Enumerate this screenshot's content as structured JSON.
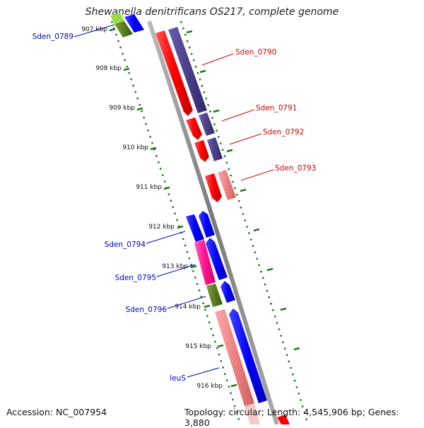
{
  "title": "Shewanella denitrificans OS217, complete genome",
  "footer": {
    "accession": "Accession: NC_007954",
    "stats": "Topology: circular; Length: 4,545,906 bp; Genes: 3,880"
  },
  "ticks": [
    "907 kbp",
    "908 kbp",
    "909 kbp",
    "910 kbp",
    "911 kbp",
    "912 kbp",
    "913 kbp",
    "914 kbp",
    "915 kbp",
    "916 kbp"
  ],
  "genes": {
    "reverse": [
      {
        "name": "Sden_0790",
        "label_color": "#cc0000"
      },
      {
        "name": "Sden_0791",
        "label_color": "#cc0000"
      },
      {
        "name": "Sden_0792",
        "label_color": "#cc0000"
      },
      {
        "name": "Sden_0793",
        "label_color": "#cc0000"
      }
    ],
    "forward": [
      {
        "name": "Sden_0789",
        "label_color": "#0000bb"
      },
      {
        "name": "Sden_0794",
        "label_color": "#0000bb"
      },
      {
        "name": "Sden_0795",
        "label_color": "#0000bb"
      },
      {
        "name": "Sden_0796",
        "label_color": "#0000bb"
      },
      {
        "name": "leuS",
        "label_color": "#0000bb"
      }
    ]
  },
  "colors": {
    "backbone": "#8c8c8c",
    "tick": "#1f7a1f",
    "cds_red": "#ff0000",
    "cds_purple": "#4b3f8c",
    "cds_blue": "#0000ff",
    "cds_pink": "#f08080",
    "cds_magenta": "#ff1493",
    "cds_olive": "#5a7d20",
    "cds_lime": "#99dd44"
  }
}
